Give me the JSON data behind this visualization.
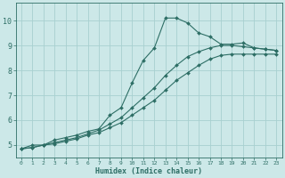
{
  "xlabel": "Humidex (Indice chaleur)",
  "xlim": [
    -0.5,
    23.5
  ],
  "ylim": [
    4.5,
    10.7
  ],
  "xticks": [
    0,
    1,
    2,
    3,
    4,
    5,
    6,
    7,
    8,
    9,
    10,
    11,
    12,
    13,
    14,
    15,
    16,
    17,
    18,
    19,
    20,
    21,
    22,
    23
  ],
  "yticks": [
    5,
    6,
    7,
    8,
    9,
    10
  ],
  "bg_color": "#cce8e8",
  "grid_color": "#a8d0d0",
  "line_color": "#2d6e65",
  "line1_x": [
    0,
    1,
    2,
    3,
    4,
    5,
    6,
    7,
    8,
    9,
    10,
    11,
    12,
    13,
    14,
    15,
    16,
    17,
    18,
    19,
    20,
    21,
    22,
    23
  ],
  "line1_y": [
    4.85,
    5.0,
    5.0,
    5.2,
    5.3,
    5.4,
    5.55,
    5.65,
    6.2,
    6.5,
    7.5,
    8.4,
    8.9,
    10.1,
    10.1,
    9.9,
    9.5,
    9.35,
    9.05,
    9.05,
    9.1,
    8.9,
    8.85,
    8.8
  ],
  "line2_x": [
    0,
    1,
    2,
    3,
    4,
    5,
    6,
    7,
    8,
    9,
    10,
    11,
    12,
    13,
    14,
    15,
    16,
    17,
    18,
    19,
    20,
    21,
    22,
    23
  ],
  "line2_y": [
    4.85,
    4.9,
    5.0,
    5.1,
    5.2,
    5.3,
    5.45,
    5.6,
    5.85,
    6.1,
    6.5,
    6.9,
    7.3,
    7.8,
    8.2,
    8.55,
    8.75,
    8.9,
    9.0,
    9.0,
    8.95,
    8.9,
    8.85,
    8.8
  ],
  "line3_x": [
    0,
    1,
    2,
    3,
    4,
    5,
    6,
    7,
    8,
    9,
    10,
    11,
    12,
    13,
    14,
    15,
    16,
    17,
    18,
    19,
    20,
    21,
    22,
    23
  ],
  "line3_y": [
    4.85,
    4.9,
    5.0,
    5.05,
    5.15,
    5.25,
    5.4,
    5.5,
    5.7,
    5.9,
    6.2,
    6.5,
    6.8,
    7.2,
    7.6,
    7.9,
    8.2,
    8.45,
    8.6,
    8.65,
    8.65,
    8.65,
    8.65,
    8.65
  ]
}
